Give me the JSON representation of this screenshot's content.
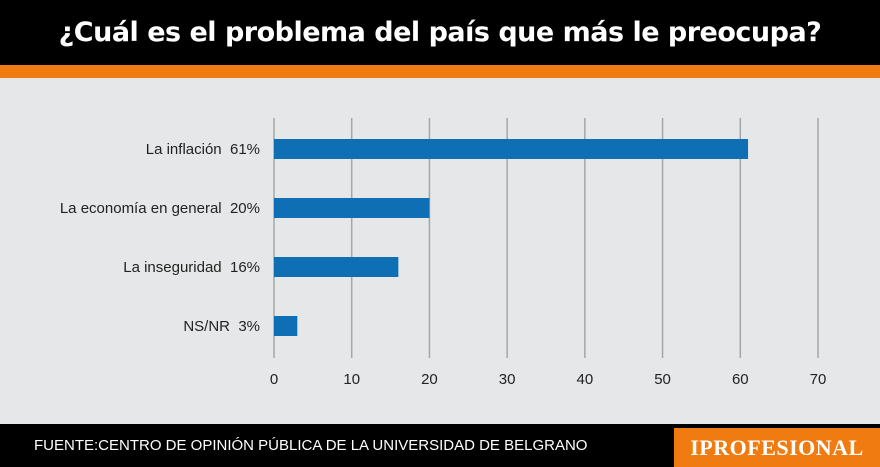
{
  "header": {
    "title": "¿Cuál es el problema del país que más le preocupa?"
  },
  "footer": {
    "source": "FUENTE:CENTRO DE OPINIÓN PÚBLICA DE LA UNIVERSIDAD DE BELGRANO",
    "brand": "IPROFESIONAL"
  },
  "colors": {
    "bar": "#0f6fb5",
    "header": "#000000",
    "accent": "#f07b10",
    "background": "#e6e7e8",
    "grid": "#a6a6a6"
  },
  "chart_data": {
    "type": "bar",
    "orientation": "horizontal",
    "categories": [
      "La inflación  61%",
      "La economía en general  20%",
      "La inseguridad  16%",
      "NS/NR  3%"
    ],
    "values": [
      61,
      20,
      16,
      3
    ],
    "xlim": [
      0,
      70
    ],
    "xticks": [
      "0",
      "10",
      "20",
      "30",
      "40",
      "50",
      "60",
      "70"
    ],
    "grid": true,
    "title": "¿Cuál es el problema del país que más le preocupa?"
  }
}
